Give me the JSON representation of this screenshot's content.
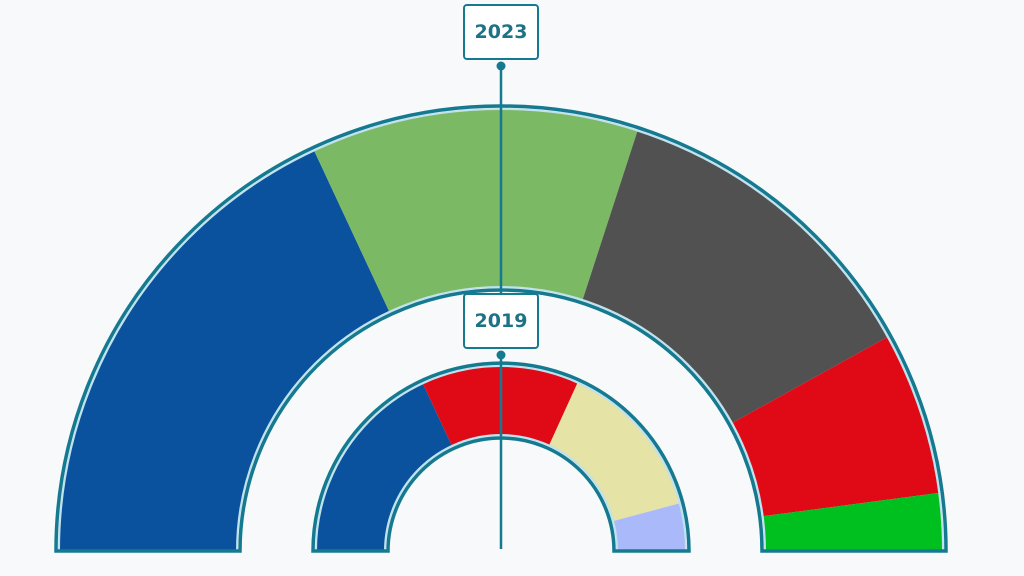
{
  "chart_data": {
    "type": "pie",
    "subtype": "nested-semicircle (parliament donut)",
    "title": "",
    "series": [
      {
        "name": "2023",
        "ring": "outer",
        "segments": [
          {
            "color": "#0a529d",
            "share_pct": 36.1
          },
          {
            "color": "#7cb964",
            "share_pct": 23.9
          },
          {
            "color": "#515151",
            "share_pct": 23.9
          },
          {
            "color": "#e00a17",
            "share_pct": 11.9
          },
          {
            "color": "#00c020",
            "share_pct": 4.2
          }
        ]
      },
      {
        "name": "2019",
        "ring": "inner",
        "segments": [
          {
            "color": "#0a529d",
            "share_pct": 36.1
          },
          {
            "color": "#e00a17",
            "share_pct": 27.5
          },
          {
            "color": "#e5e3a5",
            "share_pct": 28.1
          },
          {
            "color": "#a9b9fa",
            "share_pct": 8.3
          }
        ]
      }
    ],
    "labels": [
      "2023",
      "2019"
    ],
    "legend": "none",
    "grid": false
  },
  "labels": {
    "outer": "2023",
    "inner": "2019"
  },
  "style": {
    "accent": "#157a90",
    "ring_border": "#157a90",
    "ring_inner_highlight": "#bfe2ee",
    "background": "#f7f9fb"
  }
}
